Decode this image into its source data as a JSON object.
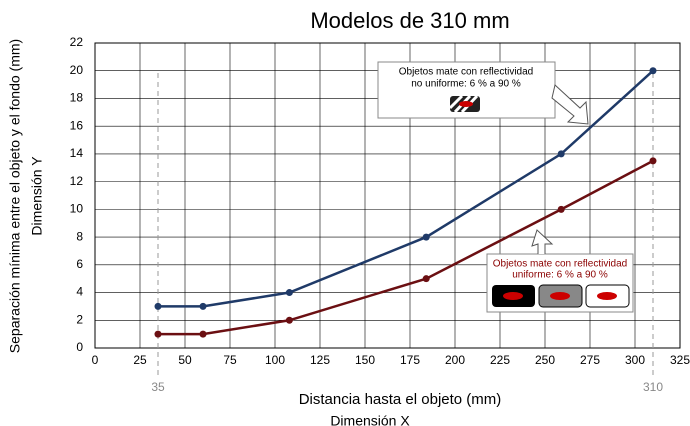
{
  "chart_data": {
    "type": "line",
    "title": "Modelos de 310 mm",
    "x_label": [
      "Distancia hasta el objeto (mm)",
      "Dimensión X"
    ],
    "y_label": [
      "Separación mínima entre el objeto y el fondo (mm)",
      "Dimensión Y"
    ],
    "x": [
      35,
      60,
      108,
      184,
      259,
      310
    ],
    "series": [
      {
        "color": "#1f3a68",
        "values": [
          3,
          3,
          4,
          8,
          14,
          20
        ]
      },
      {
        "color": "#6b0f12",
        "values": [
          1,
          1,
          2,
          5,
          10,
          13.5
        ]
      }
    ],
    "xlim": [
      0,
      325
    ],
    "xticks": [
      0,
      25,
      50,
      75,
      100,
      125,
      150,
      175,
      200,
      225,
      250,
      275,
      300,
      325
    ],
    "ylim": [
      0,
      22
    ],
    "yticks": [
      0,
      2,
      4,
      6,
      8,
      10,
      12,
      14,
      16,
      18,
      20,
      22
    ],
    "grid": true,
    "marker_lines": [
      35,
      310
    ],
    "annotations": [
      {
        "lines": [
          "Objetos mate con reflectividad",
          "no uniforme: 6 % a 90 %"
        ]
      },
      {
        "lines": [
          "Objetos mate con reflectividad",
          "uniforme: 6 % a 90 %"
        ]
      }
    ]
  }
}
